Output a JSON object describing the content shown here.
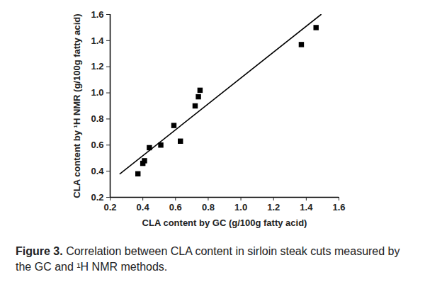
{
  "chart_data": {
    "type": "scatter",
    "caption_label": "Figure 3.",
    "caption": "Correlation between CLA content in sirloin steak cuts measured by the GC and ¹H NMR methods.",
    "x_label": "CLA content by GC (g/100g fatty acid)",
    "y_label": "CLA content by ¹H NMR (g/100g fatty acid)",
    "x": [
      0.37,
      0.4,
      0.41,
      0.44,
      0.51,
      0.59,
      0.63,
      0.72,
      0.74,
      0.75,
      1.37,
      1.46
    ],
    "y": [
      0.38,
      0.46,
      0.48,
      0.58,
      0.6,
      0.75,
      0.63,
      0.9,
      0.97,
      1.02,
      1.37,
      1.5
    ],
    "marker": "square",
    "color": "#000000",
    "fit_line": {
      "x": [
        0.26,
        1.49
      ],
      "y": [
        0.38,
        1.6
      ],
      "color": "#000000",
      "line_style": "solid"
    },
    "xlim": [
      0.2,
      1.6
    ],
    "xticks": [
      0.2,
      0.4,
      0.6,
      0.8,
      {
        "value": 1,
        "label": "1.0"
      },
      1.2,
      1.4,
      1.6
    ],
    "ylim": [
      0.2,
      1.6
    ],
    "yticks": [
      0.2,
      0.4,
      0.6,
      0.8,
      {
        "value": 1,
        "label": "1.0"
      },
      1.2,
      1.4,
      1.6
    ],
    "grid": false
  }
}
